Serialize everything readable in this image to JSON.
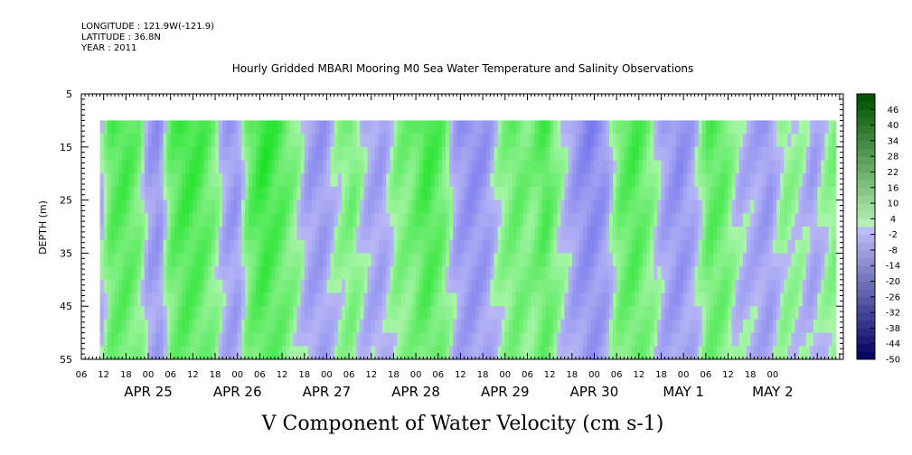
{
  "header": {
    "longitude": "LONGITUDE : 121.9W(-121.9)",
    "latitude": "LATITUDE : 36.8N",
    "year": "YEAR : 2011"
  },
  "chart_data": {
    "type": "heatmap",
    "title": "Hourly Gridded MBARI Mooring M0 Sea Water Temperature and Salinity Observations",
    "variable_label": "V Component of Water Velocity (cm s-1)",
    "ylabel": "DEPTH (m)",
    "y_ticks": [
      5,
      15,
      25,
      35,
      45,
      55
    ],
    "ylim": [
      5,
      55
    ],
    "y_inverted": true,
    "data_depth_range": [
      10,
      55
    ],
    "x_hour_ticks": [
      "06",
      "12",
      "18",
      "00",
      "06",
      "12",
      "18",
      "00",
      "06",
      "12",
      "18",
      "00",
      "06",
      "12",
      "18",
      "00",
      "06",
      "12",
      "18",
      "00",
      "06",
      "12",
      "18",
      "00",
      "06",
      "12",
      "18",
      "00",
      "06",
      "12",
      "18",
      "00"
    ],
    "x_day_labels": [
      "APR 25",
      "APR 26",
      "APR 27",
      "APR 28",
      "APR 29",
      "APR 30",
      "MAY  1",
      "MAY  2"
    ],
    "x_range_hours_from_apr25_00": [
      -18,
      187
    ],
    "data_time_range_hours": [
      -13,
      185
    ],
    "colorbar": {
      "labels": [
        "46",
        "40",
        "34",
        "28",
        "22",
        "16",
        "10",
        "4",
        "-2",
        "-8",
        "-14",
        "-20",
        "-26",
        "-32",
        "-38",
        "-44",
        "-50"
      ],
      "levels_min": -50,
      "levels_max": 52,
      "step": 3
    },
    "grid": false,
    "legend": "colorbar right",
    "time_profiles": [
      {
        "t": -13,
        "v": -4
      },
      {
        "t": -10,
        "v": 12
      },
      {
        "t": -6,
        "v": 14
      },
      {
        "t": -2,
        "v": 6
      },
      {
        "t": 0,
        "v": -6
      },
      {
        "t": 3,
        "v": -9
      },
      {
        "t": 6,
        "v": 10
      },
      {
        "t": 10,
        "v": 16
      },
      {
        "t": 14,
        "v": 14
      },
      {
        "t": 18,
        "v": 6
      },
      {
        "t": 21,
        "v": -6
      },
      {
        "t": 24,
        "v": -8
      },
      {
        "t": 27,
        "v": 10
      },
      {
        "t": 31,
        "v": 18
      },
      {
        "t": 36,
        "v": 12
      },
      {
        "t": 40,
        "v": 4
      },
      {
        "t": 43,
        "v": -6
      },
      {
        "t": 47,
        "v": -8
      },
      {
        "t": 51,
        "v": 2
      },
      {
        "t": 55,
        "v": 8
      },
      {
        "t": 59,
        "v": -4
      },
      {
        "t": 63,
        "v": -6
      },
      {
        "t": 67,
        "v": 6
      },
      {
        "t": 71,
        "v": 8
      },
      {
        "t": 75,
        "v": 16
      },
      {
        "t": 79,
        "v": 10
      },
      {
        "t": 83,
        "v": -6
      },
      {
        "t": 87,
        "v": -10
      },
      {
        "t": 91,
        "v": -8
      },
      {
        "t": 95,
        "v": 4
      },
      {
        "t": 99,
        "v": 10
      },
      {
        "t": 103,
        "v": 6
      },
      {
        "t": 107,
        "v": 14
      },
      {
        "t": 111,
        "v": 2
      },
      {
        "t": 115,
        "v": -8
      },
      {
        "t": 119,
        "v": -12
      },
      {
        "t": 123,
        "v": -8
      },
      {
        "t": 127,
        "v": 10
      },
      {
        "t": 131,
        "v": 14
      },
      {
        "t": 135,
        "v": 6
      },
      {
        "t": 139,
        "v": -6
      },
      {
        "t": 143,
        "v": -10
      },
      {
        "t": 147,
        "v": -4
      },
      {
        "t": 151,
        "v": 12
      },
      {
        "t": 155,
        "v": 10
      },
      {
        "t": 159,
        "v": -2
      },
      {
        "t": 163,
        "v": -4
      },
      {
        "t": 167,
        "v": -8
      },
      {
        "t": 171,
        "v": 4
      },
      {
        "t": 175,
        "v": 2
      },
      {
        "t": 179,
        "v": -6
      },
      {
        "t": 183,
        "v": 4
      },
      {
        "t": 185,
        "v": 6
      }
    ]
  }
}
